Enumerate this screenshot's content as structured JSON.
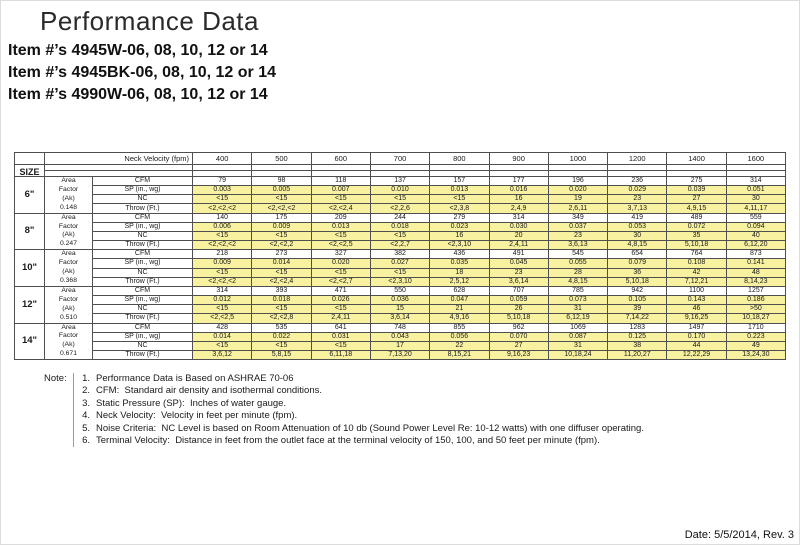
{
  "page": {
    "title": "Performance Data",
    "item_lines": [
      "Item #’s 4945W-06, 08, 10, 12 or 14",
      "Item #’s 4945BK-06, 08, 10, 12 or 14",
      "Item #’s 4990W-06, 08, 10, 12 or 14"
    ],
    "date_line": "Date: 5/5/2014, Rev. 3"
  },
  "colors": {
    "highlight": "#f8f2a0",
    "border": "#4f4f4f"
  },
  "table": {
    "size_header": "SIZE",
    "neck_velocity_label": "Neck Velocity (fpm)",
    "velocities": [
      "400",
      "500",
      "600",
      "700",
      "800",
      "900",
      "1000",
      "1200",
      "1400",
      "1600"
    ],
    "area_lines": [
      "Area",
      "Factor",
      "(Ak)"
    ],
    "row_labels": {
      "cfm": "CFM",
      "sp": "SP (in., wg)",
      "nc": "NC",
      "throw": "Throw (Ft.)"
    },
    "sizes": [
      {
        "size": "6\"",
        "ak": "0.148",
        "cfm": [
          "79",
          "98",
          "118",
          "137",
          "157",
          "177",
          "196",
          "236",
          "275",
          "314"
        ],
        "sp": [
          "0.003",
          "0.005",
          "0.007",
          "0.010",
          "0.013",
          "0.016",
          "0.020",
          "0.029",
          "0.039",
          "0.051"
        ],
        "nc": [
          "<15",
          "<15",
          "<15",
          "<15",
          "<15",
          "16",
          "19",
          "23",
          "27",
          "30"
        ],
        "throw": [
          "<2,<2,<2",
          "<2,<2,<2",
          "<2,<2,4",
          "<2,2,6",
          "<2,3,8",
          "2,4,9",
          "2,6,11",
          "3,7,13",
          "4,9,15",
          "4,11,17"
        ]
      },
      {
        "size": "8\"",
        "ak": "0.247",
        "cfm": [
          "140",
          "175",
          "209",
          "244",
          "279",
          "314",
          "349",
          "419",
          "489",
          "559"
        ],
        "sp": [
          "0.006",
          "0.009",
          "0.013",
          "0.018",
          "0.023",
          "0.030",
          "0.037",
          "0.053",
          "0.072",
          "0.094"
        ],
        "nc": [
          "<15",
          "<15",
          "<15",
          "<15",
          "16",
          "20",
          "23",
          "30",
          "35",
          "40"
        ],
        "throw": [
          "<2,<2,<2",
          "<2,<2,2",
          "<2,<2,5",
          "<2,2,7",
          "<2,3,10",
          "2,4,11",
          "3,6,13",
          "4,8,15",
          "5,10,18",
          "6,12,20"
        ]
      },
      {
        "size": "10\"",
        "ak": "0.368",
        "cfm": [
          "218",
          "273",
          "327",
          "382",
          "436",
          "491",
          "545",
          "654",
          "764",
          "873"
        ],
        "sp": [
          "0.009",
          "0.014",
          "0.020",
          "0.027",
          "0.035",
          "0.045",
          "0.055",
          "0.079",
          "0.108",
          "0.141"
        ],
        "nc": [
          "<15",
          "<15",
          "<15",
          "<15",
          "18",
          "23",
          "28",
          "36",
          "42",
          "48"
        ],
        "throw": [
          "<2,<2,<2",
          "<2,<2,4",
          "<2,<2,7",
          "<2,3,10",
          "2,5,12",
          "3,6,14",
          "4,8,15",
          "5,10,18",
          "7,12,21",
          "8,14,23"
        ]
      },
      {
        "size": "12\"",
        "ak": "0.510",
        "cfm": [
          "314",
          "393",
          "471",
          "550",
          "628",
          "707",
          "785",
          "942",
          "1100",
          "1257"
        ],
        "sp": [
          "0.012",
          "0.018",
          "0.026",
          "0.036",
          "0.047",
          "0.059",
          "0.073",
          "0.105",
          "0.143",
          "0.186"
        ],
        "nc": [
          "<15",
          "<15",
          "<15",
          "15",
          "21",
          "26",
          "31",
          "39",
          "46",
          ">50"
        ],
        "throw": [
          "<2,<2,5",
          "<2,<2,8",
          "2,4,11",
          "3,6,14",
          "4,9,16",
          "5,10,18",
          "6,12,19",
          "7,14,22",
          "9,16,25",
          "10,18,27"
        ]
      },
      {
        "size": "14\"",
        "ak": "0.671",
        "cfm": [
          "428",
          "535",
          "641",
          "748",
          "855",
          "962",
          "1069",
          "1283",
          "1497",
          "1710"
        ],
        "sp": [
          "0.014",
          "0.022",
          "0.031",
          "0.043",
          "0.056",
          "0.070",
          "0.087",
          "0.125",
          "0.170",
          "0.223"
        ],
        "nc": [
          "<15",
          "<15",
          "<15",
          "17",
          "22",
          "27",
          "31",
          "38",
          "44",
          "49"
        ],
        "throw": [
          "3,6,12",
          "5,8,15",
          "6,11,18",
          "7,13,20",
          "8,15,21",
          "9,16,23",
          "10,18,24",
          "11,20,27",
          "12,22,29",
          "13,24,30"
        ]
      }
    ]
  },
  "notes": {
    "label": "Note:",
    "items": [
      {
        "num": "1.",
        "text": "Performance Data is Based on ASHRAE 70-06"
      },
      {
        "num": "2.",
        "text": "CFM:  Standard air density and isothermal conditions."
      },
      {
        "num": "3.",
        "text": "Static Pressure (SP):  Inches of water gauge."
      },
      {
        "num": "4.",
        "text": "Neck Velocity:  Velocity in feet per minute (fpm)."
      },
      {
        "num": "5.",
        "text": "Noise Criteria:  NC Level is based on Room Attenuation of 10 db (Sound Power Level Re: 10-12 watts) with one diffuser operating."
      },
      {
        "num": "6.",
        "text": "Terminal Velocity:  Distance in feet from the outlet face at the terminal velocity of 150, 100, and 50 feet per minute (fpm)."
      }
    ]
  }
}
